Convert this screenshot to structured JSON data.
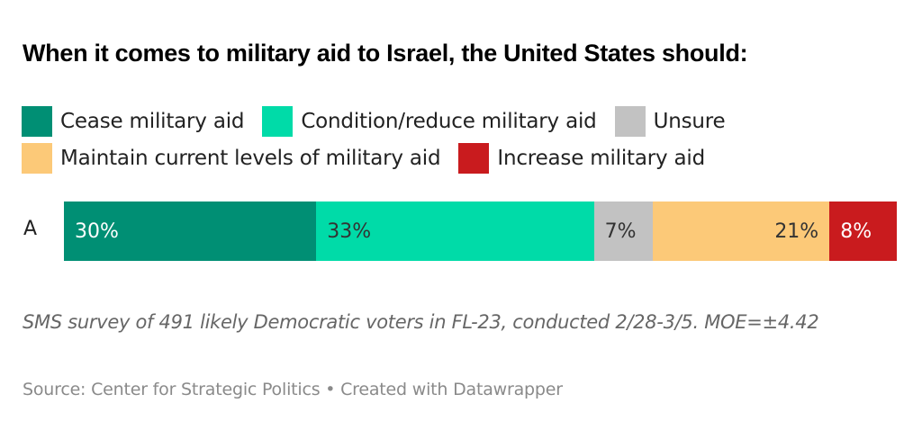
{
  "chart_data": {
    "type": "bar",
    "orientation": "horizontal-stacked",
    "title": "When it comes to military aid to Israel, the United States should:",
    "categories": [
      "A"
    ],
    "series": [
      {
        "name": "Cease military aid",
        "values": [
          30
        ],
        "color": "#008f74",
        "label": "30%",
        "label_color": "#ffffff",
        "label_align": "left"
      },
      {
        "name": "Condition/reduce military aid",
        "values": [
          33
        ],
        "color": "#00dba8",
        "label": "33%",
        "label_color": "#333333",
        "label_align": "left"
      },
      {
        "name": "Unsure",
        "values": [
          7
        ],
        "color": "#c2c2c2",
        "label": "7%",
        "label_color": "#333333",
        "label_align": "left"
      },
      {
        "name": "Maintain current levels of military aid",
        "values": [
          21
        ],
        "color": "#fcc978",
        "label": "21%",
        "label_color": "#333333",
        "label_align": "right"
      },
      {
        "name": "Increase military aid",
        "values": [
          8
        ],
        "color": "#c91b1e",
        "label": "8%",
        "label_color": "#ffffff",
        "label_align": "left"
      }
    ],
    "legend": {
      "placement": "top-left",
      "rows": [
        [
          0,
          1,
          2
        ],
        [
          3,
          4
        ]
      ]
    },
    "xlabel": "",
    "ylabel": "",
    "grid": false,
    "notes": "SMS survey of 491 likely Democratic voters in FL-23, conducted 2/28-3/5. MOE=±4.42",
    "source": "Source: Center for Strategic Politics • Created with Datawrapper"
  }
}
